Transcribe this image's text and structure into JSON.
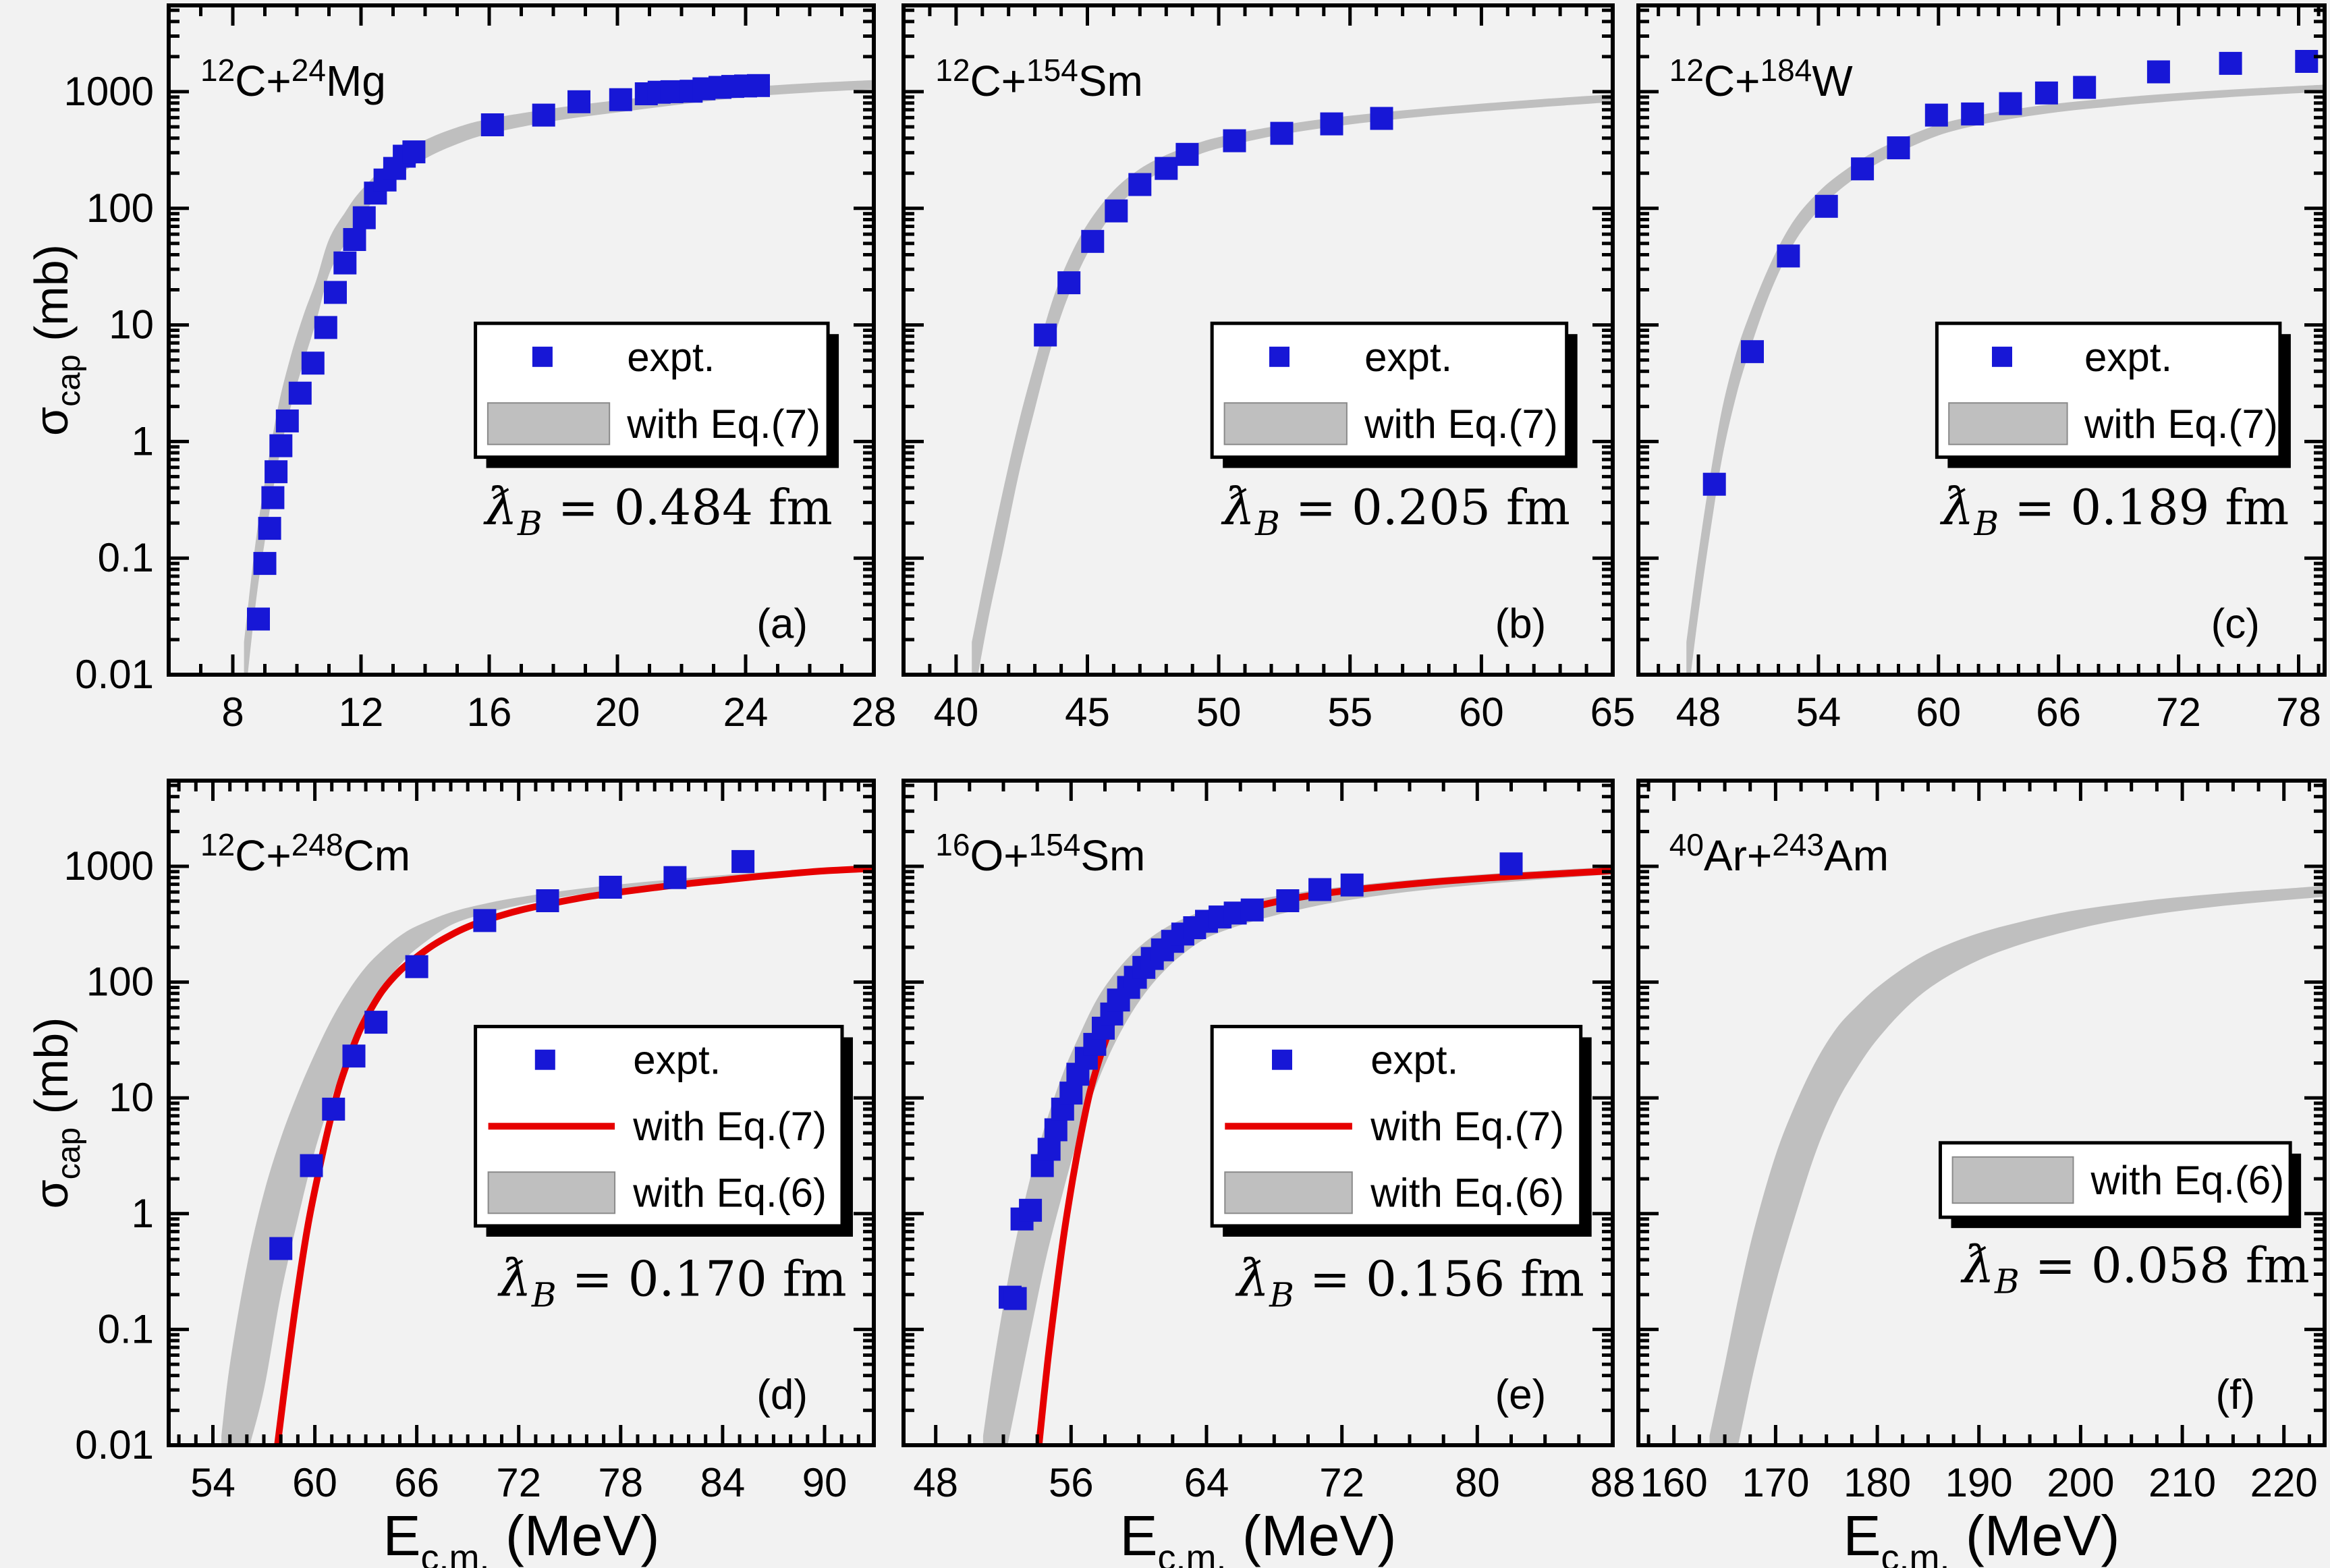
{
  "figure": {
    "bg_color": "#f2f2f2",
    "frame_color": "#000000",
    "marker_color": "#1717d6",
    "band_color": "#bfbfbf",
    "line_color": "#e60000",
    "legend_bg": "#ffffff",
    "ylabel": {
      "sym": "σ",
      "sub": "cap",
      "rest": " (mb)"
    },
    "xlabel": {
      "sym": "E",
      "sub": "c.m.",
      "rest": " (MeV)"
    },
    "ytick_labels": [
      "1000",
      "100",
      "10",
      "1",
      "0.1",
      "0.01"
    ]
  },
  "chart_data": [
    {
      "id": "a",
      "type": "scatter",
      "label": "(a)",
      "title": [
        "12",
        "C+",
        "24",
        "Mg"
      ],
      "lambda": {
        "sym": "ƛ",
        "sub": "B",
        "text": " = 0.484 fm"
      },
      "xlim": [
        6.0,
        28
      ],
      "xticks": [
        8,
        12,
        16,
        20,
        24,
        28
      ],
      "minor_step": 1,
      "ylim": [
        0.01,
        5500
      ],
      "legend": [
        {
          "swatch": "square",
          "label": "expt."
        },
        {
          "swatch": "band",
          "label": "with Eq.(7)"
        }
      ],
      "points": [
        [
          8.8,
          0.03
        ],
        [
          9.0,
          0.09
        ],
        [
          9.15,
          0.18
        ],
        [
          9.25,
          0.33
        ],
        [
          9.35,
          0.55
        ],
        [
          9.5,
          0.92
        ],
        [
          9.7,
          1.5
        ],
        [
          10.1,
          2.6
        ],
        [
          10.5,
          4.7
        ],
        [
          10.9,
          9.5
        ],
        [
          11.2,
          19
        ],
        [
          11.5,
          34
        ],
        [
          11.8,
          54
        ],
        [
          12.1,
          83
        ],
        [
          12.45,
          135
        ],
        [
          12.75,
          175
        ],
        [
          13.05,
          220
        ],
        [
          13.35,
          280
        ],
        [
          13.65,
          305
        ],
        [
          16.1,
          520
        ],
        [
          17.7,
          630
        ],
        [
          18.8,
          820
        ],
        [
          20.1,
          855
        ],
        [
          20.9,
          960
        ],
        [
          21.3,
          990
        ],
        [
          21.7,
          1000
        ],
        [
          22.3,
          1010
        ],
        [
          22.7,
          1060
        ],
        [
          23.2,
          1090
        ],
        [
          23.6,
          1110
        ],
        [
          24.0,
          1120
        ],
        [
          24.4,
          1130
        ]
      ],
      "band": {
        "x": [
          8.35,
          8.7,
          9.0,
          9.4,
          9.8,
          10.2,
          10.6,
          11.0,
          11.5,
          12,
          13,
          14,
          15,
          16,
          18,
          20,
          22,
          24,
          26,
          28
        ],
        "hi": [
          0.019,
          0.13,
          0.45,
          1.9,
          5.3,
          12,
          24,
          54,
          92,
          142,
          265,
          385,
          495,
          585,
          720,
          845,
          970,
          1090,
          1185,
          1260
        ],
        "lo": [
          0.005,
          0.038,
          0.14,
          0.64,
          1.95,
          4.7,
          10.7,
          27,
          50,
          85,
          175,
          266,
          356,
          436,
          560,
          665,
          780,
          900,
          985,
          1050
        ]
      }
    },
    {
      "id": "b",
      "type": "scatter",
      "label": "(b)",
      "title": [
        "12",
        "C+",
        "154",
        "Sm"
      ],
      "lambda": {
        "sym": "ƛ",
        "sub": "B",
        "text": " = 0.205 fm"
      },
      "xlim": [
        38.0,
        65
      ],
      "xticks": [
        40,
        45,
        50,
        55,
        60,
        65
      ],
      "minor_step": 1,
      "ylim": [
        0.01,
        5500
      ],
      "legend": [
        {
          "swatch": "square",
          "label": "expt."
        },
        {
          "swatch": "band",
          "label": "with Eq.(7)"
        }
      ],
      "points": [
        [
          43.4,
          8.2
        ],
        [
          44.3,
          23
        ],
        [
          45.2,
          52
        ],
        [
          46.1,
          95
        ],
        [
          47.0,
          160
        ],
        [
          48.0,
          220
        ],
        [
          48.8,
          290
        ],
        [
          50.6,
          380
        ],
        [
          52.4,
          440
        ],
        [
          54.3,
          530
        ],
        [
          56.2,
          590
        ]
      ],
      "band": {
        "x": [
          40.6,
          41.2,
          41.8,
          42.4,
          43.0,
          43.6,
          44.2,
          45,
          46,
          47,
          48,
          49,
          50,
          52,
          54,
          56,
          58,
          60,
          62,
          65
        ],
        "hi": [
          0.019,
          0.09,
          0.39,
          1.5,
          4.8,
          14.5,
          33,
          73,
          142,
          218,
          287,
          350,
          408,
          500,
          585,
          658,
          725,
          790,
          855,
          950
        ],
        "lo": [
          0.005,
          0.028,
          0.12,
          0.54,
          1.9,
          6.2,
          16,
          41,
          93,
          157,
          218,
          275,
          327,
          414,
          489,
          557,
          619,
          675,
          730,
          815
        ]
      }
    },
    {
      "id": "c",
      "type": "scatter",
      "label": "(c)",
      "title": [
        "12",
        "C+",
        "184",
        "W"
      ],
      "lambda": {
        "sym": "ƛ",
        "sub": "B",
        "text": " = 0.189 fm"
      },
      "xlim": [
        45.0,
        79.3
      ],
      "xticks": [
        48,
        54,
        60,
        66,
        72,
        78
      ],
      "minor_step": 1,
      "ylim": [
        0.01,
        5500
      ],
      "legend": [
        {
          "swatch": "square",
          "label": "expt."
        },
        {
          "swatch": "band",
          "label": "with Eq.(7)"
        }
      ],
      "points": [
        [
          48.8,
          0.43
        ],
        [
          50.7,
          5.9
        ],
        [
          52.5,
          39
        ],
        [
          54.4,
          104
        ],
        [
          56.2,
          218
        ],
        [
          58.0,
          330
        ],
        [
          59.9,
          630
        ],
        [
          61.7,
          645
        ],
        [
          63.6,
          790
        ],
        [
          65.4,
          975
        ],
        [
          67.3,
          1090
        ],
        [
          71.0,
          1480
        ],
        [
          74.6,
          1750
        ],
        [
          78.4,
          1820
        ]
      ],
      "band": {
        "x": [
          47.4,
          48.0,
          48.6,
          49.2,
          49.9,
          50.6,
          51.4,
          52.2,
          53,
          54,
          55,
          56.5,
          58,
          60,
          62,
          64,
          66,
          68,
          70,
          73,
          76,
          79.3
        ],
        "hi": [
          0.019,
          0.11,
          0.52,
          1.95,
          5.8,
          12.8,
          28,
          54,
          89,
          138,
          193,
          287,
          385,
          523,
          628,
          716,
          795,
          858,
          920,
          1003,
          1075,
          1150
        ],
        "lo": [
          0.005,
          0.033,
          0.17,
          0.74,
          2.5,
          6.3,
          15.7,
          32.7,
          58,
          96,
          141,
          218,
          300,
          422,
          518,
          599,
          670,
          728,
          785,
          862,
          930,
          1000
        ]
      }
    },
    {
      "id": "d",
      "type": "scatter",
      "label": "(d)",
      "title": [
        "12",
        "C+",
        "248",
        "Cm"
      ],
      "lambda": {
        "sym": "ƛ",
        "sub": "B",
        "text": " = 0.170 fm"
      },
      "xlim": [
        51.4,
        92.9
      ],
      "xticks": [
        54,
        60,
        66,
        72,
        78,
        84,
        90
      ],
      "minor_step": 1,
      "ylim": [
        0.01,
        5500
      ],
      "legend": [
        {
          "swatch": "square",
          "label": "expt."
        },
        {
          "swatch": "line",
          "label": "with Eq.(7)"
        },
        {
          "swatch": "band",
          "label": "with Eq.(6)"
        }
      ],
      "points": [
        [
          58.0,
          0.5
        ],
        [
          59.8,
          2.6
        ],
        [
          61.1,
          8
        ],
        [
          62.3,
          23
        ],
        [
          63.6,
          45
        ],
        [
          66.0,
          136
        ],
        [
          70.0,
          340
        ],
        [
          73.7,
          505
        ],
        [
          77.4,
          660
        ],
        [
          81.2,
          800
        ],
        [
          85.2,
          1100
        ]
      ],
      "band": {
        "x": [
          54.5,
          55,
          56,
          57,
          58,
          59,
          60,
          61,
          62,
          63,
          64,
          65,
          66,
          68,
          70,
          72,
          75,
          78,
          81,
          84,
          87,
          90,
          92.9
        ],
        "hi": [
          0.012,
          0.05,
          0.35,
          1.5,
          4.5,
          11,
          24,
          48,
          85,
          135,
          190,
          250,
          305,
          400,
          475,
          540,
          625,
          700,
          770,
          840,
          905,
          965,
          1010
        ],
        "lo": [
          0.0008,
          0.002,
          0.008,
          0.03,
          0.2,
          0.9,
          3.5,
          10,
          25,
          50,
          90,
          140,
          195,
          310,
          390,
          460,
          555,
          640,
          715,
          790,
          855,
          920,
          965
        ]
      },
      "line": [
        [
          57.8,
          0.01
        ],
        [
          58.4,
          0.05
        ],
        [
          59.0,
          0.22
        ],
        [
          59.6,
          0.8
        ],
        [
          60.2,
          2.2
        ],
        [
          60.8,
          5.5
        ],
        [
          61.4,
          12
        ],
        [
          62.0,
          22
        ],
        [
          62.6,
          37
        ],
        [
          63.2,
          55
        ],
        [
          64,
          85
        ],
        [
          65,
          125
        ],
        [
          66,
          165
        ],
        [
          67,
          210
        ],
        [
          68,
          255
        ],
        [
          69,
          300
        ],
        [
          70,
          340
        ],
        [
          72,
          415
        ],
        [
          74,
          480
        ],
        [
          76,
          545
        ],
        [
          78,
          600
        ],
        [
          80,
          655
        ],
        [
          82,
          710
        ],
        [
          84,
          760
        ],
        [
          86,
          815
        ],
        [
          88,
          865
        ],
        [
          90,
          915
        ],
        [
          92.9,
          960
        ]
      ]
    },
    {
      "id": "e",
      "type": "scatter",
      "label": "(e)",
      "title": [
        "16",
        "O+",
        "154",
        "Sm"
      ],
      "lambda": {
        "sym": "ƛ",
        "sub": "B",
        "text": " = 0.156 fm"
      },
      "xlim": [
        46.1,
        88
      ],
      "xticks": [
        48,
        56,
        64,
        72,
        80,
        88
      ],
      "minor_step": 2,
      "ylim": [
        0.01,
        5500
      ],
      "legend": [
        {
          "swatch": "square",
          "label": "expt."
        },
        {
          "swatch": "line",
          "label": "with Eq.(7)"
        },
        {
          "swatch": "band",
          "label": "with Eq.(6)"
        }
      ],
      "points": [
        [
          52.4,
          0.19
        ],
        [
          52.7,
          0.185
        ],
        [
          53.1,
          0.9
        ],
        [
          53.6,
          1.07
        ],
        [
          54.3,
          2.6
        ],
        [
          54.7,
          3.6
        ],
        [
          55.1,
          5.3
        ],
        [
          55.5,
          8
        ],
        [
          56.0,
          11
        ],
        [
          56.4,
          16
        ],
        [
          56.9,
          22
        ],
        [
          57.4,
          29
        ],
        [
          57.9,
          40
        ],
        [
          58.4,
          53
        ],
        [
          58.8,
          70
        ],
        [
          59.4,
          90
        ],
        [
          59.8,
          110
        ],
        [
          60.3,
          134
        ],
        [
          60.8,
          160
        ],
        [
          61.4,
          190
        ],
        [
          62.0,
          225
        ],
        [
          62.6,
          260
        ],
        [
          63.3,
          295
        ],
        [
          64.0,
          335
        ],
        [
          64.8,
          365
        ],
        [
          65.7,
          395
        ],
        [
          66.7,
          420
        ],
        [
          68.8,
          505
        ],
        [
          70.7,
          630
        ],
        [
          72.6,
          690
        ],
        [
          82.0,
          1050
        ]
      ],
      "band": {
        "x": [
          50.8,
          51.5,
          52.5,
          53.5,
          54.5,
          55.5,
          56.5,
          57.5,
          58.5,
          59.5,
          60.5,
          61.5,
          62.5,
          64,
          66,
          68,
          70,
          72,
          75,
          78,
          81,
          84,
          88
        ],
        "hi": [
          0.012,
          0.06,
          0.4,
          1.8,
          6,
          16,
          35,
          70,
          115,
          170,
          230,
          290,
          345,
          420,
          490,
          550,
          610,
          665,
          740,
          805,
          865,
          920,
          990
        ],
        "lo": [
          0.0008,
          0.003,
          0.015,
          0.08,
          0.4,
          1.5,
          5,
          13,
          28,
          52,
          85,
          125,
          170,
          240,
          310,
          375,
          440,
          500,
          580,
          650,
          715,
          775,
          855
        ]
      },
      "line": [
        [
          54.1,
          0.01
        ],
        [
          54.6,
          0.05
        ],
        [
          55.1,
          0.2
        ],
        [
          55.6,
          0.7
        ],
        [
          56.1,
          2
        ],
        [
          56.6,
          5
        ],
        [
          57.1,
          11
        ],
        [
          57.6,
          20
        ],
        [
          58.1,
          33
        ],
        [
          58.6,
          50
        ],
        [
          59.2,
          72
        ],
        [
          59.8,
          100
        ],
        [
          60.4,
          130
        ],
        [
          61.2,
          175
        ],
        [
          62,
          225
        ],
        [
          63,
          280
        ],
        [
          64,
          330
        ],
        [
          65,
          375
        ],
        [
          66,
          415
        ],
        [
          68,
          490
        ],
        [
          70,
          555
        ],
        [
          72,
          610
        ],
        [
          75,
          680
        ],
        [
          78,
          745
        ],
        [
          81,
          800
        ],
        [
          84,
          850
        ],
        [
          88,
          915
        ]
      ]
    },
    {
      "id": "f",
      "type": "band-only",
      "label": "(f)",
      "title": [
        "40",
        "Ar+",
        "243",
        "Am"
      ],
      "lambda": {
        "sym": "ƛ",
        "sub": "B",
        "text": " = 0.058 fm"
      },
      "xlim": [
        156.5,
        224
      ],
      "xticks": [
        160,
        170,
        180,
        190,
        200,
        210,
        220
      ],
      "minor_step": 2.5,
      "ylim": [
        0.01,
        5500
      ],
      "legend": [
        {
          "swatch": "band",
          "label": "with Eq.(6)"
        }
      ],
      "points": [],
      "band": {
        "x": [
          163.5,
          165,
          166.5,
          168,
          170,
          172,
          174,
          176,
          178,
          180,
          183,
          186,
          190,
          194,
          198,
          202,
          206,
          210,
          215,
          220,
          224
        ],
        "hi": [
          0.012,
          0.05,
          0.22,
          0.8,
          3.2,
          9,
          21,
          40,
          62,
          90,
          140,
          195,
          265,
          330,
          395,
          450,
          500,
          545,
          595,
          640,
          680
        ],
        "lo": [
          0.0008,
          0.003,
          0.012,
          0.05,
          0.25,
          1,
          3.5,
          9,
          18,
          32,
          62,
          100,
          155,
          210,
          265,
          320,
          370,
          415,
          465,
          510,
          545
        ]
      }
    }
  ]
}
